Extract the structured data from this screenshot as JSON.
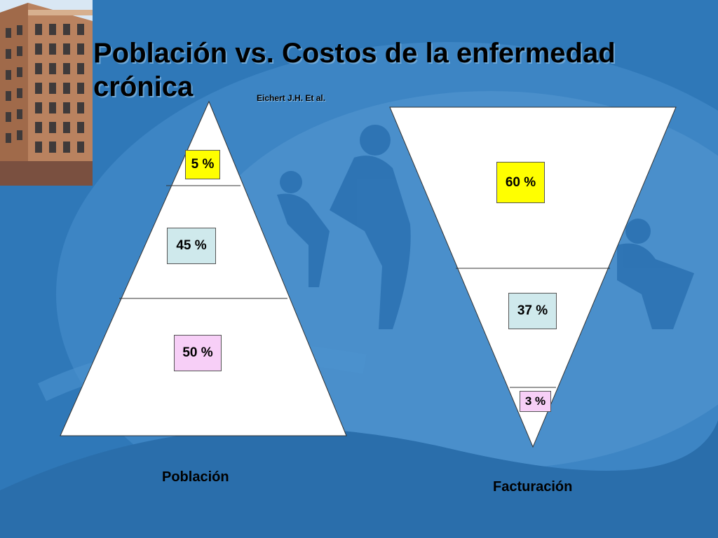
{
  "slide": {
    "title": "Población vs. Costos de la enfermedad crónica",
    "citation": "Eichert J.H. Et al."
  },
  "pyramids": [
    {
      "label": "Población",
      "shape": "upright-triangle",
      "segments": [
        {
          "position": "top",
          "value": "5 %",
          "color": "#ffff00"
        },
        {
          "position": "middle",
          "value": "45 %",
          "color": "#cfe9ec"
        },
        {
          "position": "bottom",
          "value": "50 %",
          "color": "#f7cff7"
        }
      ]
    },
    {
      "label": "Facturación",
      "shape": "inverted-triangle",
      "segments": [
        {
          "position": "top",
          "value": "60 %",
          "color": "#ffff00"
        },
        {
          "position": "middle",
          "value": "37 %",
          "color": "#cfe9ec"
        },
        {
          "position": "bottom",
          "value": "3 %",
          "color": "#f7cff7"
        }
      ]
    }
  ],
  "colors": {
    "background": "#2f78b8",
    "triangle_fill": "#ffffff"
  }
}
